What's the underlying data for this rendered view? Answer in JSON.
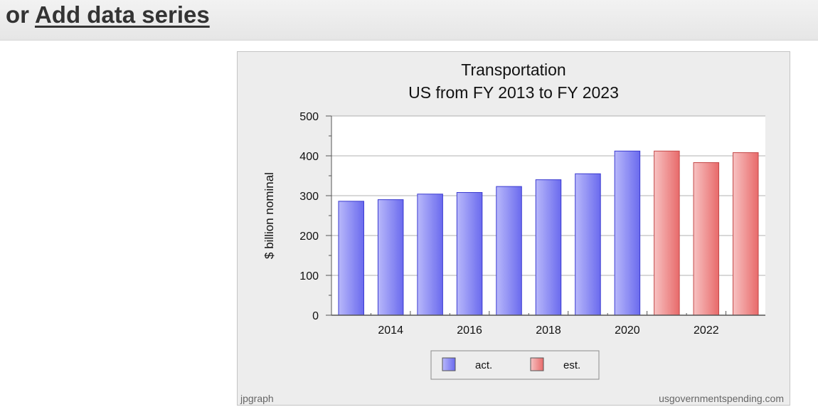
{
  "header": {
    "prefix": "or",
    "link_label": "Add data series"
  },
  "chart_data": {
    "type": "bar",
    "title": "Transportation",
    "subtitle": "US from FY 2013 to FY 2023",
    "ylabel": "$ billion nominal",
    "xlabel": "",
    "ylim": [
      0,
      500
    ],
    "yticks": [
      0,
      100,
      200,
      300,
      400,
      500
    ],
    "x_tick_labels": [
      "2014",
      "2016",
      "2018",
      "2020",
      "2022"
    ],
    "categories": [
      2013,
      2014,
      2015,
      2016,
      2017,
      2018,
      2019,
      2020,
      2021,
      2022,
      2023
    ],
    "values": [
      286,
      290,
      304,
      308,
      323,
      340,
      355,
      412,
      412,
      383,
      408
    ],
    "series_type": [
      "act",
      "act",
      "act",
      "act",
      "act",
      "act",
      "act",
      "act",
      "est",
      "est",
      "est"
    ],
    "legend": [
      {
        "key": "act",
        "label": "act.",
        "color": "#7b7bf2"
      },
      {
        "key": "est",
        "label": "est.",
        "color": "#ef7b7b"
      }
    ],
    "legend_position": "bottom-center",
    "grid": true,
    "credit_left": "jpgraph",
    "credit_right": "usgovernmentspending.com"
  },
  "colors": {
    "act": "#7b7bf2",
    "est": "#ef7b7b",
    "plot_background": "#ffffff",
    "frame_background": "#ededed"
  }
}
